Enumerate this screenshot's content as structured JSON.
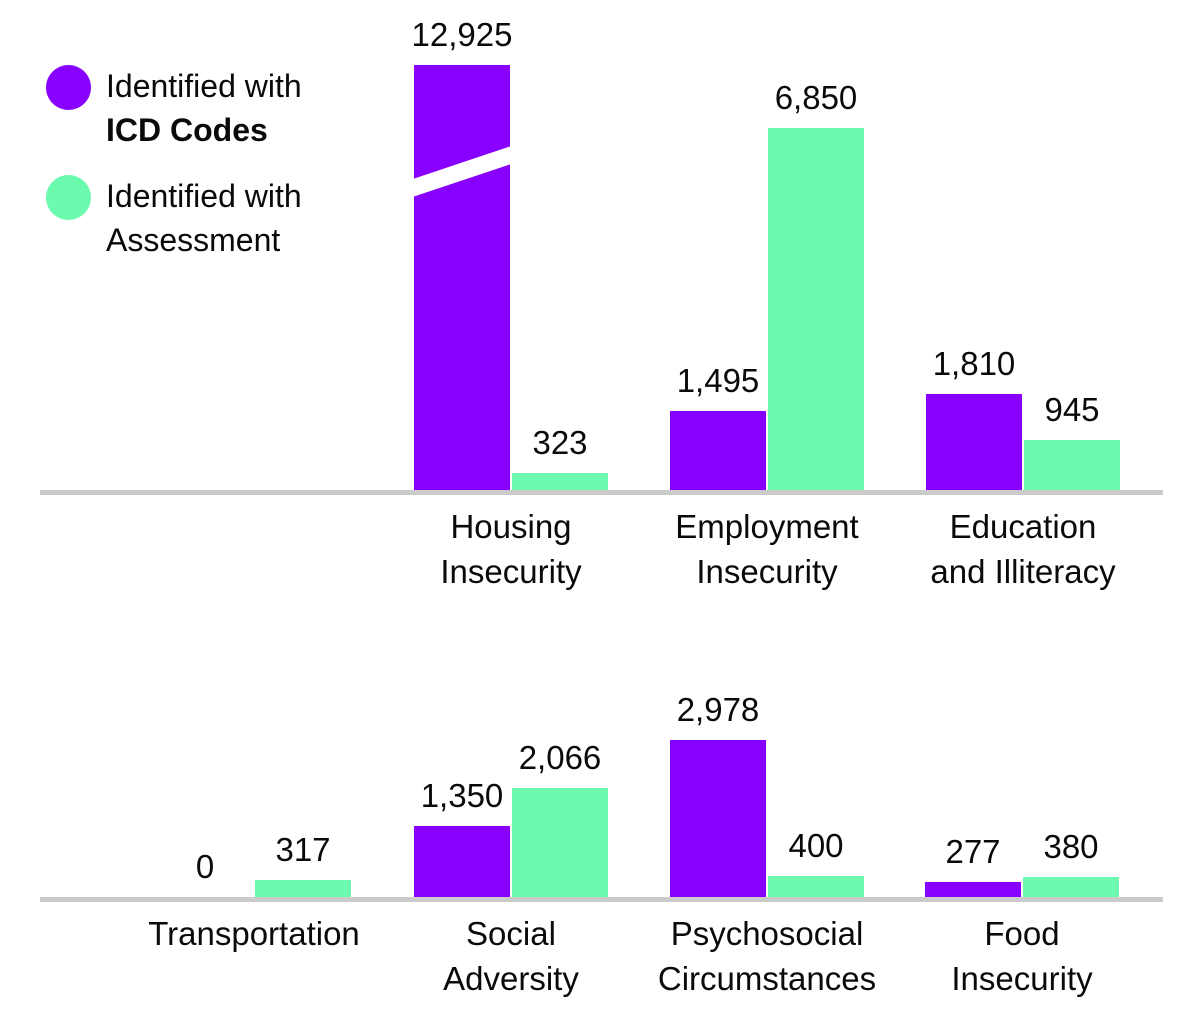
{
  "legend": {
    "items": [
      {
        "line1": "Identified with",
        "line2": "ICD Codes",
        "line2_bold": true,
        "color": "#8800ff",
        "series_key": "icd"
      },
      {
        "line1": "Identified with",
        "line2": "Assessment",
        "line2_bold": false,
        "color": "#6bfaae",
        "series_key": "assessment"
      }
    ]
  },
  "colors": {
    "icd_purple": "#8800ff",
    "assessment_green": "#6bfaae",
    "axis_line_gray": "#cbcbcb",
    "label_text": "#0a0a0a",
    "background": "#ffffff"
  },
  "chart_data": {
    "type": "bar",
    "title": "",
    "grid": false,
    "legend_position": "top-left",
    "series_names": [
      "Identified with ICD Codes",
      "Identified with Assessment"
    ],
    "value_scale_note": "both rows share one linear scale; Housing Insecurity ICD bar is truncated with a diagonal axis-break slash",
    "rows": [
      {
        "categories": [
          "Housing Insecurity",
          "Employment Insecurity",
          "Education and Illiteracy"
        ],
        "category_lines": [
          [
            "Housing",
            "Insecurity"
          ],
          [
            "Employment",
            "Insecurity"
          ],
          [
            "Education",
            "and Illiteracy"
          ]
        ],
        "series": [
          {
            "name": "Identified with ICD Codes",
            "values": [
              12925,
              1495,
              1810
            ],
            "labels": [
              "12,925",
              "1,495",
              "1,810"
            ]
          },
          {
            "name": "Identified with Assessment",
            "values": [
              323,
              6850,
              945
            ],
            "labels": [
              "323",
              "6,850",
              "945"
            ]
          }
        ],
        "axis_break": {
          "category": "Housing Insecurity",
          "series": "Identified with ICD Codes",
          "note": "diagonal white slash through truncated bar"
        }
      },
      {
        "categories": [
          "Transportation",
          "Social Adversity",
          "Psychosocial Circumstances",
          "Food Insecurity"
        ],
        "category_lines": [
          [
            "Transportation"
          ],
          [
            "Social",
            "Adversity"
          ],
          [
            "Psychosocial",
            "Circumstances"
          ],
          [
            "Food",
            "Insecurity"
          ]
        ],
        "series": [
          {
            "name": "Identified with ICD Codes",
            "values": [
              0,
              1350,
              2978,
              277
            ],
            "labels": [
              "0",
              "1,350",
              "2,978",
              "277"
            ]
          },
          {
            "name": "Identified with Assessment",
            "values": [
              317,
              2066,
              400,
              380
            ],
            "labels": [
              "317",
              "2,066",
              "400",
              "380"
            ]
          }
        ]
      }
    ]
  }
}
